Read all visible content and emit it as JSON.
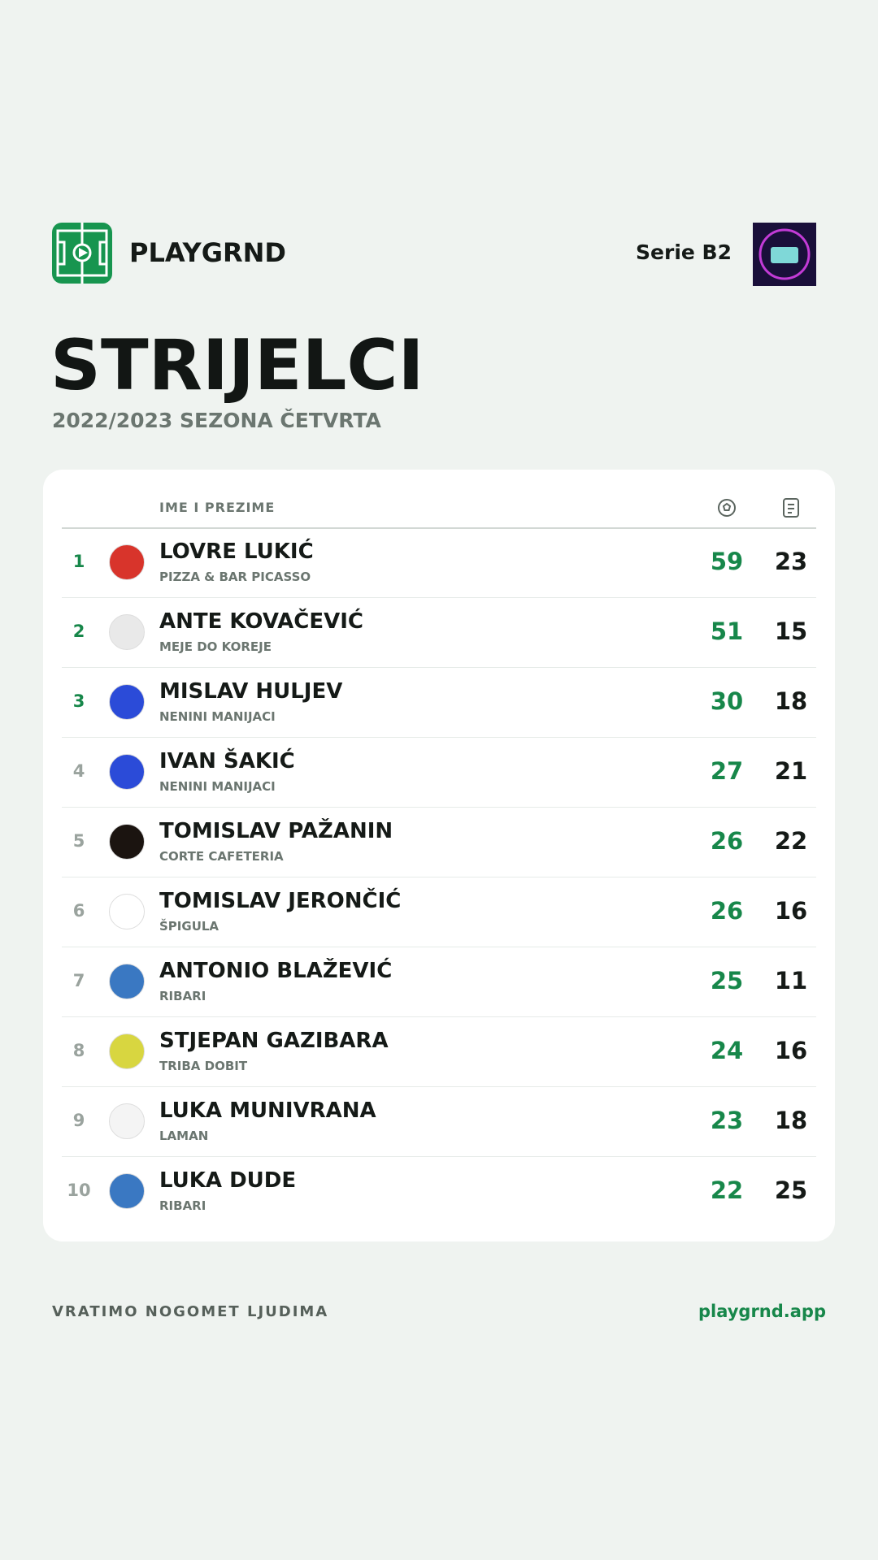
{
  "header": {
    "brand": "PLAYGRND",
    "league": "Serie B2"
  },
  "title": "STRIJELCI",
  "subtitle": "2022/2023 SEZONA ČETVRTA",
  "table": {
    "column": "IME I PREZIME",
    "rows": [
      {
        "rank": 1,
        "name": "LOVRE LUKIĆ",
        "team": "PIZZA & BAR PICASSO",
        "goals": 59,
        "apps": 23
      },
      {
        "rank": 2,
        "name": "ANTE KOVAČEVIĆ",
        "team": "MEJE DO KOREJE",
        "goals": 51,
        "apps": 15
      },
      {
        "rank": 3,
        "name": "MISLAV HULJEV",
        "team": "NENINI MANIJACI",
        "goals": 30,
        "apps": 18
      },
      {
        "rank": 4,
        "name": "IVAN ŠAKIĆ",
        "team": "NENINI MANIJACI",
        "goals": 27,
        "apps": 21
      },
      {
        "rank": 5,
        "name": "TOMISLAV PAŽANIN",
        "team": "CORTE CAFETERIA",
        "goals": 26,
        "apps": 22
      },
      {
        "rank": 6,
        "name": "TOMISLAV JERONČIĆ",
        "team": "ŠPIGULA",
        "goals": 26,
        "apps": 16
      },
      {
        "rank": 7,
        "name": "ANTONIO BLAŽEVIĆ",
        "team": "RIBARI",
        "goals": 25,
        "apps": 11
      },
      {
        "rank": 8,
        "name": "STJEPAN GAZIBARA",
        "team": "TRIBA DOBIT",
        "goals": 24,
        "apps": 16
      },
      {
        "rank": 9,
        "name": "LUKA MUNIVRANA",
        "team": "LAMAN",
        "goals": 23,
        "apps": 18
      },
      {
        "rank": 10,
        "name": "LUKA DUDE",
        "team": "RIBARI",
        "goals": 22,
        "apps": 25
      }
    ]
  },
  "footer": {
    "slogan": "VRATIMO NOGOMET LJUDIMA",
    "site": "playgrnd.app"
  }
}
